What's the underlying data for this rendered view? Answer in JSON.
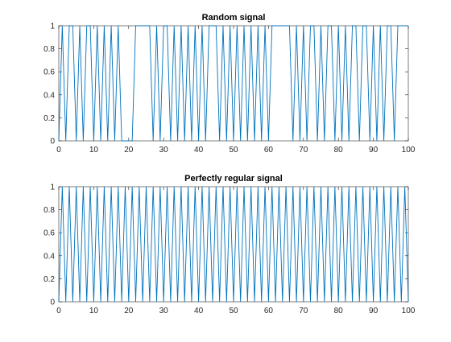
{
  "figure": {
    "background": "#ffffff",
    "axis_color": "#262626",
    "line_color": "#0072bd"
  },
  "chart_data": [
    {
      "type": "line",
      "title": "Random signal",
      "xlabel": "",
      "ylabel": "",
      "xlim": [
        0,
        100
      ],
      "ylim": [
        0,
        1
      ],
      "grid": false,
      "legend": "none",
      "x_ticks": [
        "0",
        "10",
        "20",
        "30",
        "40",
        "50",
        "60",
        "70",
        "80",
        "90",
        "100"
      ],
      "y_ticks": [
        "0",
        "0.2",
        "0.4",
        "0.6",
        "0.8",
        "1"
      ],
      "series": [
        {
          "values": [
            0,
            1,
            0,
            1,
            1,
            0,
            1,
            0,
            1,
            1,
            0,
            1,
            0,
            1,
            0,
            1,
            0,
            1,
            0,
            0,
            0,
            0,
            1,
            1,
            1,
            1,
            1,
            0,
            1,
            0,
            1,
            1,
            0,
            1,
            0,
            1,
            0,
            1,
            0,
            1,
            0,
            1,
            0,
            1,
            1,
            1,
            0,
            1,
            0,
            1,
            0,
            1,
            0,
            1,
            0,
            1,
            0,
            1,
            0,
            1,
            0,
            1,
            1,
            1,
            1,
            1,
            1,
            0,
            1,
            0,
            1,
            0,
            1,
            1,
            0,
            1,
            0,
            1,
            1,
            0,
            1,
            0,
            1,
            0,
            1,
            1,
            0,
            1,
            1,
            0,
            1,
            0,
            1,
            0,
            1,
            1,
            0,
            1,
            1,
            1,
            1
          ]
        }
      ]
    },
    {
      "type": "line",
      "title": "Perfectly regular signal",
      "xlabel": "",
      "ylabel": "",
      "xlim": [
        0,
        100
      ],
      "ylim": [
        0,
        1
      ],
      "grid": false,
      "legend": "none",
      "x_ticks": [
        "0",
        "10",
        "20",
        "30",
        "40",
        "50",
        "60",
        "70",
        "80",
        "90",
        "100"
      ],
      "y_ticks": [
        "0",
        "0.2",
        "0.4",
        "0.6",
        "0.8",
        "1"
      ],
      "series": [
        {
          "values": [
            0,
            1,
            0,
            1,
            0,
            1,
            0,
            1,
            0,
            1,
            0,
            1,
            0,
            1,
            0,
            1,
            0,
            1,
            0,
            1,
            0,
            1,
            0,
            1,
            0,
            1,
            0,
            1,
            0,
            1,
            0,
            1,
            0,
            1,
            0,
            1,
            0,
            1,
            0,
            1,
            0,
            1,
            0,
            1,
            0,
            1,
            0,
            1,
            0,
            1,
            0,
            1,
            0,
            1,
            0,
            1,
            0,
            1,
            0,
            1,
            0,
            1,
            0,
            1,
            0,
            1,
            0,
            1,
            0,
            1,
            0,
            1,
            0,
            1,
            0,
            1,
            0,
            1,
            0,
            1,
            0,
            1,
            0,
            1,
            0,
            1,
            0,
            1,
            0,
            1,
            0,
            1,
            0,
            1,
            0,
            1,
            0,
            1,
            0,
            1,
            0
          ]
        }
      ]
    }
  ]
}
